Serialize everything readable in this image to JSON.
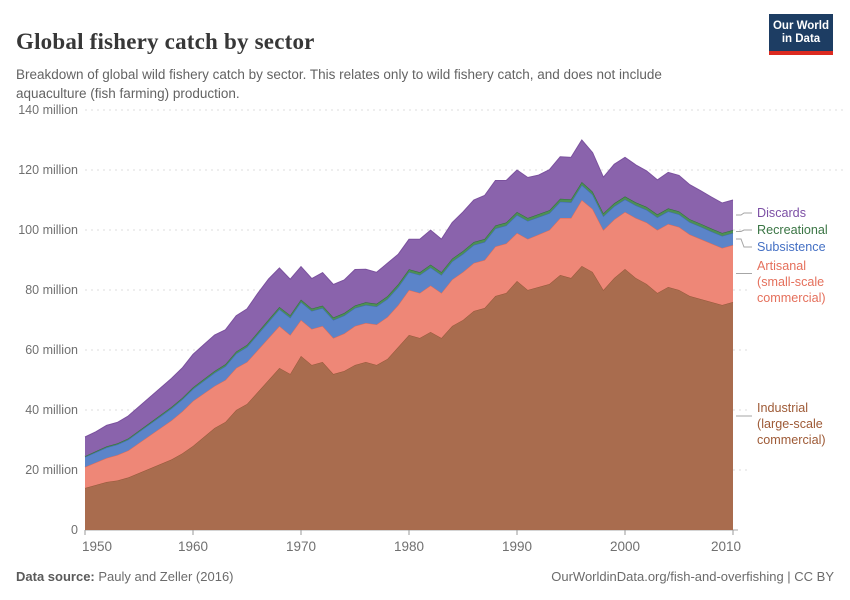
{
  "header": {
    "title": "Global fishery catch by sector",
    "subtitle": "Breakdown of global wild fishery catch by sector. This relates only to wild fishery catch, and does not include aquaculture (fish farming) production.",
    "logo": {
      "line1": "Our World",
      "line2": "in Data"
    }
  },
  "footer": {
    "source_label": "Data source:",
    "source_value": "Pauly and Zeller (2016)",
    "credit": "OurWorldinData.org/fish-and-overfishing | CC BY"
  },
  "colors": {
    "logo_bg": "#1d3d63",
    "logo_bar": "#dc2a20",
    "gridline": "#dcdcdc",
    "axis": "#999999",
    "connector": "#a6a6a6"
  },
  "chart_data": {
    "type": "area",
    "stacked": true,
    "title": "Global fishery catch by sector",
    "xlabel": "",
    "ylabel": "",
    "unit": "tonnes",
    "grid": "dashed-horizontal",
    "legend_position": "right",
    "x_range": [
      1950,
      2010
    ],
    "ylim_millions": [
      0,
      140
    ],
    "x_ticks": [
      1950,
      1960,
      1970,
      1980,
      1990,
      2000,
      2010
    ],
    "y_ticks_millions": [
      0,
      20,
      40,
      60,
      80,
      100,
      120,
      140
    ],
    "y_tick_labels": [
      "0",
      "20 million",
      "40 million",
      "60 million",
      "80 million",
      "100 million",
      "120 million",
      "140 million"
    ],
    "years": [
      1950,
      1951,
      1952,
      1953,
      1954,
      1955,
      1956,
      1957,
      1958,
      1959,
      1960,
      1961,
      1962,
      1963,
      1964,
      1965,
      1966,
      1967,
      1968,
      1969,
      1970,
      1971,
      1972,
      1973,
      1974,
      1975,
      1976,
      1977,
      1978,
      1979,
      1980,
      1981,
      1982,
      1983,
      1984,
      1985,
      1986,
      1987,
      1988,
      1989,
      1990,
      1991,
      1992,
      1993,
      1994,
      1995,
      1996,
      1997,
      1998,
      1999,
      2000,
      2001,
      2002,
      2003,
      2004,
      2005,
      2006,
      2007,
      2008,
      2009,
      2010
    ],
    "series_note": "values in million tonnes, stacked bottom to top",
    "series": [
      {
        "key": "industrial",
        "label_lines": [
          "Industrial",
          "(large-scale",
          "commercial)"
        ],
        "fill": "#a96c4e",
        "stroke": "#96583a",
        "text": "#9e5a36",
        "values": [
          14,
          15,
          16,
          16.5,
          17.5,
          19,
          20.5,
          22,
          23.5,
          25.5,
          28,
          31,
          34,
          36,
          40,
          42,
          46,
          50,
          54,
          52,
          58,
          55,
          56,
          52,
          53,
          55,
          56,
          55,
          57,
          61,
          65,
          64,
          66,
          64,
          68,
          70,
          73,
          74,
          78,
          79,
          83,
          80,
          81,
          82,
          85,
          84,
          88,
          86,
          80,
          84,
          87,
          84,
          82,
          79,
          81,
          80,
          78,
          77,
          76,
          75,
          76
        ]
      },
      {
        "key": "artisanal",
        "label_lines": [
          "Artisanal",
          "(small-scale",
          "commercial)"
        ],
        "fill": "#ee8777",
        "stroke": "#e06a56",
        "text": "#e5705c",
        "values": [
          7,
          7.5,
          8,
          8.5,
          9,
          10,
          11,
          12,
          13,
          14,
          15,
          14.5,
          14,
          14,
          14,
          14,
          14,
          14,
          14,
          13,
          12,
          12,
          12,
          12,
          12.5,
          13,
          13,
          13.5,
          14,
          14,
          15,
          15,
          15.5,
          15,
          15.5,
          16,
          16,
          16,
          16.5,
          16.5,
          16,
          17,
          17.5,
          18,
          19,
          20,
          22,
          21,
          20,
          19.5,
          19,
          20,
          20.5,
          21,
          21,
          21,
          20.5,
          20,
          19.5,
          19,
          19
        ]
      },
      {
        "key": "subsistence",
        "label_lines": [
          "Subsistence"
        ],
        "fill": "#5b84c9",
        "stroke": "#4268b4",
        "text": "#4470c4",
        "values": [
          3.3,
          3.4,
          3.5,
          3.5,
          3.6,
          3.7,
          3.8,
          3.9,
          4,
          4,
          4,
          4.2,
          4.4,
          4.6,
          4.8,
          5,
          5.2,
          5.4,
          5.6,
          5.8,
          6,
          6,
          6,
          6,
          6,
          6,
          6,
          6,
          6,
          6,
          6,
          6,
          6,
          6,
          6,
          6,
          6,
          6,
          6,
          6,
          6,
          6,
          5.8,
          5.6,
          5.4,
          5.2,
          5,
          4.8,
          4.6,
          4.4,
          4.2,
          4.2,
          4.2,
          4.2,
          4.2,
          4.2,
          4.1,
          4.1,
          4,
          4,
          4
        ]
      },
      {
        "key": "recreational",
        "label_lines": [
          "Recreational"
        ],
        "fill": "#4d8f55",
        "stroke": "#2f6e3a",
        "text": "#3a7544",
        "values": [
          0.3,
          0.32,
          0.35,
          0.37,
          0.4,
          0.42,
          0.45,
          0.47,
          0.5,
          0.5,
          0.55,
          0.6,
          0.6,
          0.65,
          0.65,
          0.7,
          0.7,
          0.75,
          0.75,
          0.8,
          0.8,
          0.8,
          0.8,
          0.85,
          0.85,
          0.85,
          0.9,
          0.9,
          0.9,
          0.9,
          0.9,
          0.9,
          0.95,
          0.95,
          0.95,
          1,
          1,
          1,
          1,
          1,
          1,
          1,
          1,
          1,
          1,
          1,
          1,
          1,
          1,
          1,
          1,
          1,
          1,
          1,
          1,
          1,
          1,
          1,
          1,
          1,
          1
        ]
      },
      {
        "key": "discards",
        "label_lines": [
          "Discards"
        ],
        "fill": "#8a63ac",
        "stroke": "#7b519e",
        "text": "#7c4fa5",
        "values": [
          6.4,
          6.5,
          7,
          7,
          7.5,
          8,
          8.5,
          9,
          9.5,
          10,
          11,
          11.5,
          12,
          11.5,
          12,
          12,
          13,
          13.5,
          13,
          12,
          11,
          10,
          11,
          11,
          11,
          12,
          11,
          10.5,
          11,
          10,
          10,
          11,
          11.5,
          11,
          12,
          13,
          14,
          14.5,
          15,
          14,
          14,
          13.5,
          13,
          13.5,
          14,
          14,
          14,
          13,
          12,
          13,
          13,
          12.5,
          12,
          11.5,
          12,
          12,
          11.5,
          11,
          10.5,
          10,
          10
        ]
      }
    ]
  }
}
